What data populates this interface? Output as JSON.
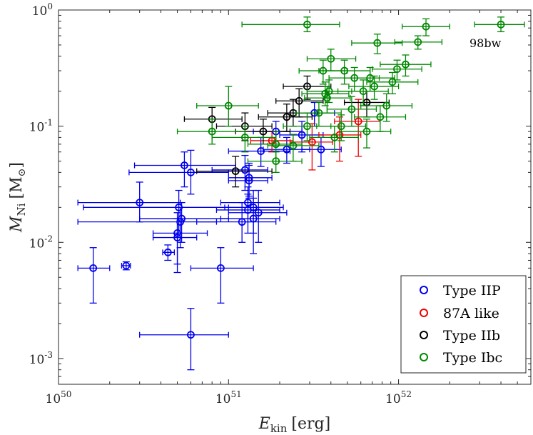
{
  "chart_data": {
    "type": "scatter",
    "title": "",
    "xlabel": {
      "main": "E",
      "sub": "kin",
      "unit": "[erg]"
    },
    "ylabel": {
      "main": "M",
      "sub": "Ni",
      "unit_open": "[M",
      "unit_sub": "⊙",
      "unit_close": "]"
    },
    "xscale": "log",
    "yscale": "log",
    "xlim": [
      1e+50,
      6e+52
    ],
    "ylim": [
      0.0006,
      1.0
    ],
    "x_ticks": [
      {
        "value": 1e+50,
        "base": "10",
        "exp": "50"
      },
      {
        "value": 1e+51,
        "base": "10",
        "exp": "51"
      },
      {
        "value": 1e+52,
        "base": "10",
        "exp": "52"
      }
    ],
    "y_ticks": [
      {
        "value": 0.001,
        "base": "10",
        "exp": "-3"
      },
      {
        "value": 0.01,
        "base": "10",
        "exp": "-2"
      },
      {
        "value": 0.1,
        "base": "10",
        "exp": "-1"
      },
      {
        "value": 1,
        "base": "10",
        "exp": "0"
      }
    ],
    "legend_position": "bottom-right",
    "annotations": [
      {
        "text": "98bw",
        "x": 2e+52,
        "y": 0.72
      }
    ],
    "series": [
      {
        "name": "Type IIP",
        "color": "#0000ee",
        "points": [
          {
            "x": 1.6e+50,
            "y": 0.006,
            "xerr": [
              1.3e+50,
              2e+50
            ],
            "yerr": [
              0.003,
              0.009
            ]
          },
          {
            "x": 2.5e+50,
            "y": 0.0063,
            "xerr": [
              2.35e+50,
              2.65e+50
            ],
            "yerr": [
              0.0058,
              0.0068
            ]
          },
          {
            "x": 3e+50,
            "y": 0.022,
            "xerr": [
              1.3e+50,
              5.2e+50
            ],
            "yerr": [
              0.015,
              0.033
            ]
          },
          {
            "x": 4.4e+50,
            "y": 0.0082,
            "xerr": [
              4.1e+50,
              4.8e+50
            ],
            "yerr": [
              0.007,
              0.0095
            ]
          },
          {
            "x": 5e+50,
            "y": 0.011,
            "xerr": [
              3.6e+50,
              6.5e+50
            ],
            "yerr": [
              0.0055,
              0.016
            ]
          },
          {
            "x": 5e+50,
            "y": 0.012,
            "xerr": [
              3.6e+50,
              7.5e+50
            ],
            "yerr": [
              0.0065,
              0.018
            ]
          },
          {
            "x": 5.1e+50,
            "y": 0.02,
            "xerr": [
              1.4e+50,
              1e+51
            ],
            "yerr": [
              0.012,
              0.028
            ]
          },
          {
            "x": 5.2e+50,
            "y": 0.015,
            "xerr": [
              1.3e+50,
              8.5e+50
            ],
            "yerr": [
              0.009,
              0.02
            ]
          },
          {
            "x": 5.3e+50,
            "y": 0.016,
            "xerr": [
              3e+50,
              1e+51
            ],
            "yerr": [
              0.01,
              0.022
            ]
          },
          {
            "x": 5.5e+50,
            "y": 0.046,
            "xerr": [
              2.8e+50,
              1.1e+51
            ],
            "yerr": [
              0.03,
              0.06
            ]
          },
          {
            "x": 6e+50,
            "y": 0.04,
            "xerr": [
              2.6e+50,
              1e+51
            ],
            "yerr": [
              0.026,
              0.062
            ]
          },
          {
            "x": 6e+50,
            "y": 0.0016,
            "xerr": [
              3e+50,
              1e+51
            ],
            "yerr": [
              0.0008,
              0.0027
            ]
          },
          {
            "x": 9e+50,
            "y": 0.006,
            "xerr": [
              6e+50,
              1.4e+51
            ],
            "yerr": [
              0.003,
              0.009
            ]
          },
          {
            "x": 1.2e+51,
            "y": 0.015,
            "xerr": [
              6.5e+50,
              1.9e+51
            ],
            "yerr": [
              0.01,
              0.022
            ]
          },
          {
            "x": 1.25e+51,
            "y": 0.042,
            "xerr": [
              8e+50,
              1.7e+51
            ],
            "yerr": [
              0.028,
              0.056
            ]
          },
          {
            "x": 1.3e+51,
            "y": 0.022,
            "xerr": [
              9e+50,
              2e+51
            ],
            "yerr": [
              0.015,
              0.03
            ]
          },
          {
            "x": 1.3e+51,
            "y": 0.019,
            "xerr": [
              8.5e+50,
              2e+51
            ],
            "yerr": [
              0.012,
              0.026
            ]
          },
          {
            "x": 1.32e+51,
            "y": 0.036,
            "xerr": [
              1e+51,
              1.8e+51
            ],
            "yerr": [
              0.025,
              0.048
            ]
          },
          {
            "x": 1.32e+51,
            "y": 0.034,
            "xerr": [
              1e+51,
              1.7e+51
            ],
            "yerr": [
              0.024,
              0.046
            ]
          },
          {
            "x": 1.4e+51,
            "y": 0.02,
            "xerr": [
              9.5e+50,
              2.1e+51
            ],
            "yerr": [
              0.012,
              0.028
            ]
          },
          {
            "x": 1.4e+51,
            "y": 0.016,
            "xerr": [
              9e+50,
              2e+51
            ],
            "yerr": [
              0.008,
              0.024
            ]
          },
          {
            "x": 1.5e+51,
            "y": 0.018,
            "xerr": [
              1e+51,
              2.2e+51
            ],
            "yerr": [
              0.01,
              0.028
            ]
          },
          {
            "x": 1.55e+51,
            "y": 0.061,
            "xerr": [
              1e+51,
              2.3e+51
            ],
            "yerr": [
              0.045,
              0.08
            ]
          },
          {
            "x": 1.9e+51,
            "y": 0.09,
            "xerr": [
              1.4e+51,
              2.7e+51
            ],
            "yerr": [
              0.07,
              0.11
            ]
          },
          {
            "x": 2.2e+51,
            "y": 0.063,
            "xerr": [
              1.6e+51,
              3e+51
            ],
            "yerr": [
              0.048,
              0.08
            ]
          },
          {
            "x": 2.7e+51,
            "y": 0.084,
            "xerr": [
              2e+51,
              3.6e+51
            ],
            "yerr": [
              0.06,
              0.11
            ]
          },
          {
            "x": 3.2e+51,
            "y": 0.13,
            "xerr": [
              2.4e+51,
              4.2e+51
            ],
            "yerr": [
              0.1,
              0.16
            ]
          },
          {
            "x": 3.5e+51,
            "y": 0.063,
            "xerr": [
              2.7e+51,
              4.6e+51
            ],
            "yerr": [
              0.045,
              0.08
            ]
          }
        ]
      },
      {
        "name": "87A like",
        "color": "#ee0000",
        "points": [
          {
            "x": 1.8e+51,
            "y": 0.075,
            "xerr": [
              1.35e+51,
              2.4e+51
            ],
            "yerr": [
              0.06,
              0.09
            ]
          },
          {
            "x": 3.1e+51,
            "y": 0.073,
            "xerr": [
              2.3e+51,
              4.1e+51
            ],
            "yerr": [
              0.042,
              0.105
            ]
          },
          {
            "x": 4.5e+51,
            "y": 0.084,
            "xerr": [
              3.4e+51,
              6e+51
            ],
            "yerr": [
              0.05,
              0.12
            ]
          },
          {
            "x": 5.8e+51,
            "y": 0.11,
            "xerr": [
              4.2e+51,
              7.8e+51
            ],
            "yerr": [
              0.055,
              0.17
            ]
          }
        ]
      },
      {
        "name": "Type IIb",
        "color": "#000000",
        "points": [
          {
            "x": 8e+50,
            "y": 0.115,
            "xerr": [
              5.5e+50,
              1.2e+51
            ],
            "yerr": [
              0.09,
              0.145
            ]
          },
          {
            "x": 1.1e+51,
            "y": 0.041,
            "xerr": [
              6.5e+50,
              1.8e+51
            ],
            "yerr": [
              0.03,
              0.055
            ]
          },
          {
            "x": 1.25e+51,
            "y": 0.1,
            "xerr": [
              8.5e+50,
              1.8e+51
            ],
            "yerr": [
              0.075,
              0.13
            ]
          },
          {
            "x": 1.6e+51,
            "y": 0.09,
            "xerr": [
              1.1e+51,
              2.3e+51
            ],
            "yerr": [
              0.07,
              0.115
            ]
          },
          {
            "x": 2.2e+51,
            "y": 0.12,
            "xerr": [
              1.5e+51,
              3.1e+51
            ],
            "yerr": [
              0.09,
              0.155
            ]
          },
          {
            "x": 2.4e+51,
            "y": 0.13,
            "xerr": [
              1.7e+51,
              3.4e+51
            ],
            "yerr": [
              0.1,
              0.17
            ]
          },
          {
            "x": 2.6e+51,
            "y": 0.165,
            "xerr": [
              1.9e+51,
              3.6e+51
            ],
            "yerr": [
              0.12,
              0.21
            ]
          },
          {
            "x": 2.9e+51,
            "y": 0.22,
            "xerr": [
              2.1e+51,
              4e+51
            ],
            "yerr": [
              0.17,
              0.27
            ]
          },
          {
            "x": 6.5e+51,
            "y": 0.16,
            "xerr": [
              4.8e+51,
              8.8e+51
            ],
            "yerr": [
              0.12,
              0.2
            ]
          }
        ]
      },
      {
        "name": "Type Ibc",
        "color": "#008800",
        "points": [
          {
            "x": 1e+51,
            "y": 0.15,
            "xerr": [
              6.5e+50,
              1.5e+51
            ],
            "yerr": [
              0.1,
              0.22
            ]
          },
          {
            "x": 8e+50,
            "y": 0.09,
            "xerr": [
              5e+50,
              1.25e+51
            ],
            "yerr": [
              0.07,
              0.115
            ]
          },
          {
            "x": 1.25e+51,
            "y": 0.08,
            "xerr": [
              8e+50,
              1.9e+51
            ],
            "yerr": [
              0.06,
              0.1
            ]
          },
          {
            "x": 1.9e+51,
            "y": 0.07,
            "xerr": [
              1.3e+51,
              2.7e+51
            ],
            "yerr": [
              0.05,
              0.09
            ]
          },
          {
            "x": 1.9e+51,
            "y": 0.05,
            "xerr": [
              1.3e+51,
              2.7e+51
            ],
            "yerr": [
              0.04,
              0.06
            ]
          },
          {
            "x": 2.4e+51,
            "y": 0.068,
            "xerr": [
              1.7e+51,
              3.4e+51
            ],
            "yerr": [
              0.05,
              0.085
            ]
          },
          {
            "x": 2.9e+51,
            "y": 0.1,
            "xerr": [
              2.1e+51,
              4e+51
            ],
            "yerr": [
              0.075,
              0.13
            ]
          },
          {
            "x": 3.4e+51,
            "y": 0.13,
            "xerr": [
              2.5e+51,
              4.6e+51
            ],
            "yerr": [
              0.1,
              0.16
            ]
          },
          {
            "x": 3.6e+51,
            "y": 0.3,
            "xerr": [
              2.6e+51,
              5e+51
            ],
            "yerr": [
              0.23,
              0.37
            ]
          },
          {
            "x": 3.7e+51,
            "y": 0.19,
            "xerr": [
              2.7e+51,
              5.1e+51
            ],
            "yerr": [
              0.15,
              0.24
            ]
          },
          {
            "x": 3.8e+51,
            "y": 0.175,
            "xerr": [
              2.8e+51,
              5.2e+51
            ],
            "yerr": [
              0.13,
              0.22
            ]
          },
          {
            "x": 3.9e+51,
            "y": 0.2,
            "xerr": [
              2.9e+51,
              5.3e+51
            ],
            "yerr": [
              0.16,
              0.25
            ]
          },
          {
            "x": 4e+51,
            "y": 0.38,
            "xerr": [
              2.9e+51,
              5.6e+51
            ],
            "yerr": [
              0.3,
              0.46
            ]
          },
          {
            "x": 4.2e+51,
            "y": 0.08,
            "xerr": [
              3e+51,
              5.8e+51
            ],
            "yerr": [
              0.06,
              0.1
            ]
          },
          {
            "x": 4.6e+51,
            "y": 0.1,
            "xerr": [
              3.3e+51,
              6.4e+51
            ],
            "yerr": [
              0.075,
              0.125
            ]
          },
          {
            "x": 4.8e+51,
            "y": 0.3,
            "xerr": [
              3.4e+51,
              6.8e+51
            ],
            "yerr": [
              0.23,
              0.37
            ]
          },
          {
            "x": 5.3e+51,
            "y": 0.14,
            "xerr": [
              3.8e+51,
              7.4e+51
            ],
            "yerr": [
              0.1,
              0.18
            ]
          },
          {
            "x": 5.5e+51,
            "y": 0.26,
            "xerr": [
              3.9e+51,
              7.7e+51
            ],
            "yerr": [
              0.2,
              0.32
            ]
          },
          {
            "x": 6.2e+51,
            "y": 0.2,
            "xerr": [
              4.4e+51,
              8.7e+51
            ],
            "yerr": [
              0.15,
              0.25
            ]
          },
          {
            "x": 6.5e+51,
            "y": 0.09,
            "xerr": [
              4.6e+51,
              9e+51
            ],
            "yerr": [
              0.065,
              0.115
            ]
          },
          {
            "x": 6.8e+51,
            "y": 0.26,
            "xerr": [
              4.8e+51,
              9.5e+51
            ],
            "yerr": [
              0.2,
              0.32
            ]
          },
          {
            "x": 7.2e+51,
            "y": 0.22,
            "xerr": [
              5.1e+51,
              1e+52
            ],
            "yerr": [
              0.17,
              0.27
            ]
          },
          {
            "x": 7.5e+51,
            "y": 0.52,
            "xerr": [
              5.3e+51,
              1.05e+52
            ],
            "yerr": [
              0.42,
              0.62
            ]
          },
          {
            "x": 7.8e+51,
            "y": 0.12,
            "xerr": [
              5.5e+51,
              1.1e+52
            ],
            "yerr": [
              0.09,
              0.15
            ]
          },
          {
            "x": 8.5e+51,
            "y": 0.15,
            "xerr": [
              6e+51,
              1.2e+52
            ],
            "yerr": [
              0.11,
              0.19
            ]
          },
          {
            "x": 9.2e+51,
            "y": 0.24,
            "xerr": [
              6.5e+51,
              1.3e+52
            ],
            "yerr": [
              0.19,
              0.29
            ]
          },
          {
            "x": 9.8e+51,
            "y": 0.31,
            "xerr": [
              7e+51,
              1.37e+52
            ],
            "yerr": [
              0.25,
              0.37
            ]
          },
          {
            "x": 1.1e+52,
            "y": 0.34,
            "xerr": [
              7.8e+51,
              1.55e+52
            ],
            "yerr": [
              0.27,
              0.41
            ]
          },
          {
            "x": 1.3e+52,
            "y": 0.53,
            "xerr": [
              9.5e+51,
              1.8e+52
            ],
            "yerr": [
              0.46,
              0.6
            ]
          },
          {
            "x": 1.45e+52,
            "y": 0.72,
            "xerr": [
              1.05e+52,
              2e+52
            ],
            "yerr": [
              0.6,
              0.84
            ]
          },
          {
            "x": 2.9e+51,
            "y": 0.75,
            "xerr": [
              1.2e+51,
              4.5e+51
            ],
            "yerr": [
              0.65,
              0.87
            ]
          },
          {
            "x": 4e+52,
            "y": 0.75,
            "xerr": [
              2.8e+52,
              5.5e+52
            ],
            "yerr": [
              0.65,
              0.87
            ]
          }
        ]
      }
    ]
  }
}
